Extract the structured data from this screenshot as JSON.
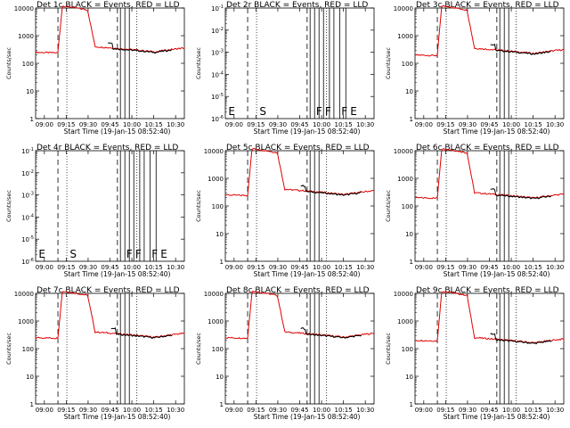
{
  "figure": {
    "colors": {
      "events": "#000000",
      "lld": "#e00000",
      "background": "#ffffff",
      "axes": "#000000"
    }
  },
  "chart_data": [
    {
      "type": "line",
      "panel": "det-1c",
      "title": "Det 1c BLACK = Events, RED = LLD",
      "xlabel": "Start Time (19-Jan-15 08:52:40)",
      "ylabel": "Counts/sec",
      "yscale": "log",
      "ylim": [
        1,
        10000
      ],
      "ytick_labels": [
        "10000",
        "1000",
        "100",
        "10",
        "1"
      ],
      "xlim": [
        0,
        100
      ],
      "xtick_labels": [
        "09:00",
        "09:15",
        "09:30",
        "09:45",
        "10:00",
        "10:15",
        "10:30"
      ],
      "has_data": true,
      "flare_end": 0.33,
      "black_after": 0.48,
      "rise": 15,
      "baseline": 250,
      "peak": 12000,
      "flare_level": 400,
      "dashed_x": [
        15,
        55
      ],
      "dotted_x": [
        21,
        68
      ],
      "solid_x": [
        57,
        60,
        63
      ],
      "markers": [],
      "series": [
        {
          "name": "Events",
          "color": "#000000"
        },
        {
          "name": "LLD",
          "color": "#e00000"
        }
      ]
    },
    {
      "type": "line",
      "panel": "det-2r",
      "title": "Det 2r BLACK = Events, RED = LLD",
      "xlabel": "Start Time (19-Jan-15 08:52:40)",
      "ylabel": "Counts/sec",
      "yscale": "log",
      "ylim": [
        1e-06,
        0.1
      ],
      "ytick_labels": [
        "10^-1",
        "10^-2",
        "10^-3",
        "10^-4",
        "10^-5",
        "10^-6"
      ],
      "xlim": [
        0,
        100
      ],
      "xtick_labels": [
        "09:00",
        "09:15",
        "09:30",
        "09:45",
        "10:00",
        "10:15",
        "10:30"
      ],
      "has_data": false,
      "dashed_x": [
        15,
        55
      ],
      "dotted_x": [
        21,
        68
      ],
      "solid_x": [
        57,
        60,
        63,
        66,
        70,
        73,
        77,
        81
      ],
      "markers": [
        {
          "x": 2,
          "label": "E"
        },
        {
          "x": 23,
          "label": "S"
        },
        {
          "x": 61,
          "label": "F"
        },
        {
          "x": 67,
          "label": "F"
        },
        {
          "x": 78,
          "label": "F"
        },
        {
          "x": 84,
          "label": "E"
        }
      ],
      "series": []
    },
    {
      "type": "line",
      "panel": "det-3c",
      "title": "Det 3c BLACK = Events, RED = LLD",
      "xlabel": "Start Time (19-Jan-15 08:52:40)",
      "ylabel": "Counts/sec",
      "yscale": "log",
      "ylim": [
        1,
        10000
      ],
      "ytick_labels": [
        "10000",
        "1000",
        "100",
        "10",
        "1"
      ],
      "xlim": [
        0,
        100
      ],
      "xtick_labels": [
        "09:00",
        "09:15",
        "09:30",
        "09:45",
        "10:00",
        "10:15",
        "10:30"
      ],
      "has_data": true,
      "flare_end": 0.35,
      "black_after": 0.5,
      "rise": 15,
      "baseline": 200,
      "peak": 12000,
      "flare_level": 350,
      "dashed_x": [
        15,
        55
      ],
      "dotted_x": [
        21,
        68
      ],
      "solid_x": [
        57,
        60,
        63
      ],
      "markers": [],
      "series": [
        {
          "name": "Events",
          "color": "#000000"
        },
        {
          "name": "LLD",
          "color": "#e00000"
        }
      ]
    },
    {
      "type": "line",
      "panel": "det-4r",
      "title": "Det 4r BLACK = Events, RED = LLD",
      "xlabel": "Start Time (19-Jan-15 08:52:40)",
      "ylabel": "Counts/sec",
      "yscale": "log",
      "ylim": [
        1e-06,
        0.1
      ],
      "ytick_labels": [
        "10^-1",
        "10^-2",
        "10^-3",
        "10^-4",
        "10^-5",
        "10^-6"
      ],
      "xlim": [
        0,
        100
      ],
      "xtick_labels": [
        "09:00",
        "09:15",
        "09:30",
        "09:45",
        "10:00",
        "10:15",
        "10:30"
      ],
      "has_data": false,
      "dashed_x": [
        15,
        55
      ],
      "dotted_x": [
        21,
        68
      ],
      "solid_x": [
        57,
        60,
        63,
        66,
        70,
        73,
        77,
        81
      ],
      "markers": [
        {
          "x": 2,
          "label": "E"
        },
        {
          "x": 23,
          "label": "S"
        },
        {
          "x": 61,
          "label": "F"
        },
        {
          "x": 67,
          "label": "F"
        },
        {
          "x": 78,
          "label": "F"
        },
        {
          "x": 84,
          "label": "E"
        }
      ],
      "series": []
    },
    {
      "type": "line",
      "panel": "det-5c",
      "title": "Det 5c BLACK = Events, RED = LLD",
      "xlabel": "Start Time (19-Jan-15 08:52:40)",
      "ylabel": "Counts/sec",
      "yscale": "log",
      "ylim": [
        1,
        10000
      ],
      "ytick_labels": [
        "10000",
        "1000",
        "100",
        "10",
        "1"
      ],
      "xlim": [
        0,
        100
      ],
      "xtick_labels": [
        "09:00",
        "09:15",
        "09:30",
        "09:45",
        "10:00",
        "10:15",
        "10:30"
      ],
      "has_data": true,
      "flare_end": 0.35,
      "black_after": 0.5,
      "rise": 15,
      "baseline": 250,
      "peak": 12000,
      "flare_level": 400,
      "dashed_x": [
        15,
        55
      ],
      "dotted_x": [
        21,
        68
      ],
      "solid_x": [
        57,
        60,
        63
      ],
      "markers": [],
      "series": [
        {
          "name": "Events",
          "color": "#000000"
        },
        {
          "name": "LLD",
          "color": "#e00000"
        }
      ]
    },
    {
      "type": "line",
      "panel": "det-6c",
      "title": "Det 6c BLACK = Events, RED = LLD",
      "xlabel": "Start Time (19-Jan-15 08:52:40)",
      "ylabel": "Counts/sec",
      "yscale": "log",
      "ylim": [
        1,
        10000
      ],
      "ytick_labels": [
        "10000",
        "1000",
        "100",
        "10",
        "1"
      ],
      "xlim": [
        0,
        100
      ],
      "xtick_labels": [
        "09:00",
        "09:15",
        "09:30",
        "09:45",
        "10:00",
        "10:15",
        "10:30"
      ],
      "has_data": true,
      "flare_end": 0.35,
      "black_after": 0.5,
      "rise": 15,
      "baseline": 200,
      "peak": 12000,
      "flare_level": 300,
      "dashed_x": [
        15,
        55
      ],
      "dotted_x": [
        21,
        68
      ],
      "solid_x": [
        57,
        60,
        63
      ],
      "markers": [],
      "series": [
        {
          "name": "Events",
          "color": "#000000"
        },
        {
          "name": "LLD",
          "color": "#e00000"
        }
      ]
    },
    {
      "type": "line",
      "panel": "det-7c",
      "title": "Det 7c BLACK = Events, RED = LLD",
      "xlabel": "Start Time (19-Jan-15 08:52:40)",
      "ylabel": "Counts/sec",
      "yscale": "log",
      "ylim": [
        1,
        10000
      ],
      "ytick_labels": [
        "10000",
        "1000",
        "100",
        "10",
        "1"
      ],
      "xlim": [
        0,
        100
      ],
      "xtick_labels": [
        "09:00",
        "09:15",
        "09:30",
        "09:45",
        "10:00",
        "10:15",
        "10:30"
      ],
      "has_data": true,
      "flare_end": 0.35,
      "black_after": 0.5,
      "rise": 15,
      "baseline": 250,
      "peak": 12000,
      "flare_level": 400,
      "dashed_x": [
        15,
        55
      ],
      "dotted_x": [
        21,
        68
      ],
      "solid_x": [
        57,
        60,
        63
      ],
      "markers": [],
      "series": [
        {
          "name": "Events",
          "color": "#000000"
        },
        {
          "name": "LLD",
          "color": "#e00000"
        }
      ]
    },
    {
      "type": "line",
      "panel": "det-8c",
      "title": "Det 8c BLACK = Events, RED = LLD",
      "xlabel": "Start Time (19-Jan-15 08:52:40)",
      "ylabel": "Counts/sec",
      "yscale": "log",
      "ylim": [
        1,
        10000
      ],
      "ytick_labels": [
        "10000",
        "1000",
        "100",
        "10",
        "1"
      ],
      "xlim": [
        0,
        100
      ],
      "xtick_labels": [
        "09:00",
        "09:15",
        "09:30",
        "09:45",
        "10:00",
        "10:15",
        "10:30"
      ],
      "has_data": true,
      "flare_end": 0.35,
      "black_after": 0.5,
      "rise": 15,
      "baseline": 250,
      "peak": 12000,
      "flare_level": 400,
      "dashed_x": [
        15,
        55
      ],
      "dotted_x": [
        21,
        68
      ],
      "solid_x": [
        57,
        60,
        63
      ],
      "markers": [],
      "series": [
        {
          "name": "Events",
          "color": "#000000"
        },
        {
          "name": "LLD",
          "color": "#e00000"
        }
      ]
    },
    {
      "type": "line",
      "panel": "det-9c",
      "title": "Det 9c BLACK = Events, RED = LLD",
      "xlabel": "Start Time (19-Jan-15 08:52:40)",
      "ylabel": "Counts/sec",
      "yscale": "log",
      "ylim": [
        1,
        10000
      ],
      "ytick_labels": [
        "10000",
        "1000",
        "100",
        "10",
        "1"
      ],
      "xlim": [
        0,
        100
      ],
      "xtick_labels": [
        "09:00",
        "09:15",
        "09:30",
        "09:45",
        "10:00",
        "10:15",
        "10:30"
      ],
      "has_data": true,
      "flare_end": 0.35,
      "black_after": 0.5,
      "rise": 15,
      "baseline": 200,
      "peak": 12000,
      "flare_level": 250,
      "dashed_x": [
        15,
        55
      ],
      "dotted_x": [
        21,
        68
      ],
      "solid_x": [
        57,
        60,
        63
      ],
      "markers": [],
      "series": [
        {
          "name": "Events",
          "color": "#000000"
        },
        {
          "name": "LLD",
          "color": "#e00000"
        }
      ]
    }
  ]
}
